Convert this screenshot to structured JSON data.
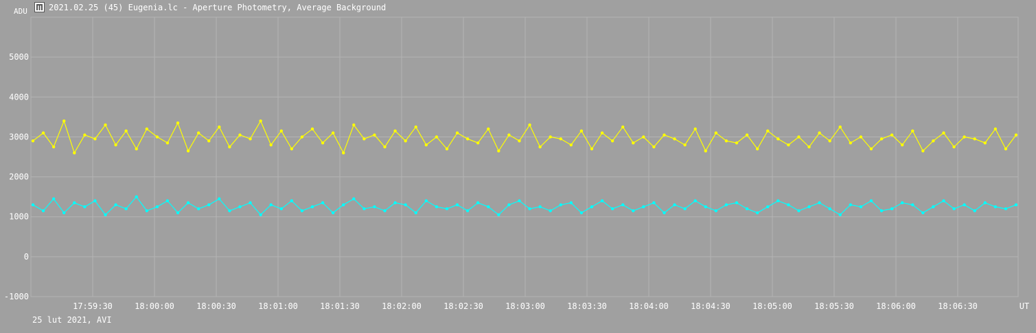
{
  "window": {
    "title": "2021.02.25 (45) Eugenia.lc - Aperture Photometry, Average Background"
  },
  "footer": {
    "text": "25 lut 2021, AVI"
  },
  "colors": {
    "background": "#a0a0a0",
    "grid": "#b4b4b4",
    "series_photometry": "#ffff00",
    "series_background": "#00ffff",
    "text": "#ffffff"
  },
  "chart_data": {
    "type": "line",
    "title": "2021.02.25 (45) Eugenia.lc - Aperture Photometry, Average Background",
    "xlabel": "UT",
    "ylabel": "ADU",
    "x_range": [
      "17:59:04",
      "18:06:58"
    ],
    "ylim": [
      -1000,
      6000
    ],
    "y_ticks": [
      -1000,
      0,
      1000,
      2000,
      3000,
      4000,
      5000
    ],
    "x_ticks": [
      "17:59:30",
      "18:00:00",
      "18:00:30",
      "18:01:00",
      "18:01:30",
      "18:02:00",
      "18:02:30",
      "18:03:00",
      "18:03:30",
      "18:04:00",
      "18:04:30",
      "18:05:00",
      "18:05:30",
      "18:06:00",
      "18:06:30"
    ],
    "grid": true,
    "marker": "circle",
    "series": [
      {
        "key": "photometry",
        "color": "#ffff00",
        "values": [
          2900,
          3100,
          2750,
          3400,
          2600,
          3050,
          2950,
          3300,
          2800,
          3150,
          2700,
          3200,
          3000,
          2850,
          3350,
          2650,
          3100,
          2900,
          3250,
          2750,
          3050,
          2950,
          3400,
          2800,
          3150,
          2700,
          3000,
          3200,
          2850,
          3100,
          2600,
          3300,
          2950,
          3050,
          2750,
          3150,
          2900,
          3250,
          2800,
          3000,
          2700,
          3100,
          2950,
          2850,
          3200,
          2650,
          3050,
          2900,
          3300,
          2750,
          3000,
          2950,
          2800,
          3150,
          2700,
          3100,
          2900,
          3250,
          2850,
          3000,
          2750,
          3050,
          2950,
          2800,
          3200,
          2650,
          3100,
          2900,
          2850,
          3050,
          2700,
          3150,
          2950,
          2800,
          3000,
          2750,
          3100,
          2900,
          3250,
          2850,
          3000,
          2700,
          2950,
          3050,
          2800,
          3150,
          2650,
          2900,
          3100,
          2750,
          3000,
          2950,
          2850,
          3200,
          2700,
          3050
        ]
      },
      {
        "key": "background",
        "color": "#00ffff",
        "values": [
          1300,
          1150,
          1450,
          1100,
          1350,
          1250,
          1400,
          1050,
          1300,
          1200,
          1500,
          1150,
          1250,
          1400,
          1100,
          1350,
          1200,
          1300,
          1450,
          1150,
          1250,
          1350,
          1050,
          1300,
          1200,
          1400,
          1150,
          1250,
          1350,
          1100,
          1300,
          1450,
          1200,
          1250,
          1150,
          1350,
          1300,
          1100,
          1400,
          1250,
          1200,
          1300,
          1150,
          1350,
          1250,
          1050,
          1300,
          1400,
          1200,
          1250,
          1150,
          1300,
          1350,
          1100,
          1250,
          1400,
          1200,
          1300,
          1150,
          1250,
          1350,
          1100,
          1300,
          1200,
          1400,
          1250,
          1150,
          1300,
          1350,
          1200,
          1100,
          1250,
          1400,
          1300,
          1150,
          1250,
          1350,
          1200,
          1050,
          1300,
          1250,
          1400,
          1150,
          1200,
          1350,
          1300,
          1100,
          1250,
          1400,
          1200,
          1300,
          1150,
          1350,
          1250,
          1200,
          1300
        ]
      }
    ]
  }
}
